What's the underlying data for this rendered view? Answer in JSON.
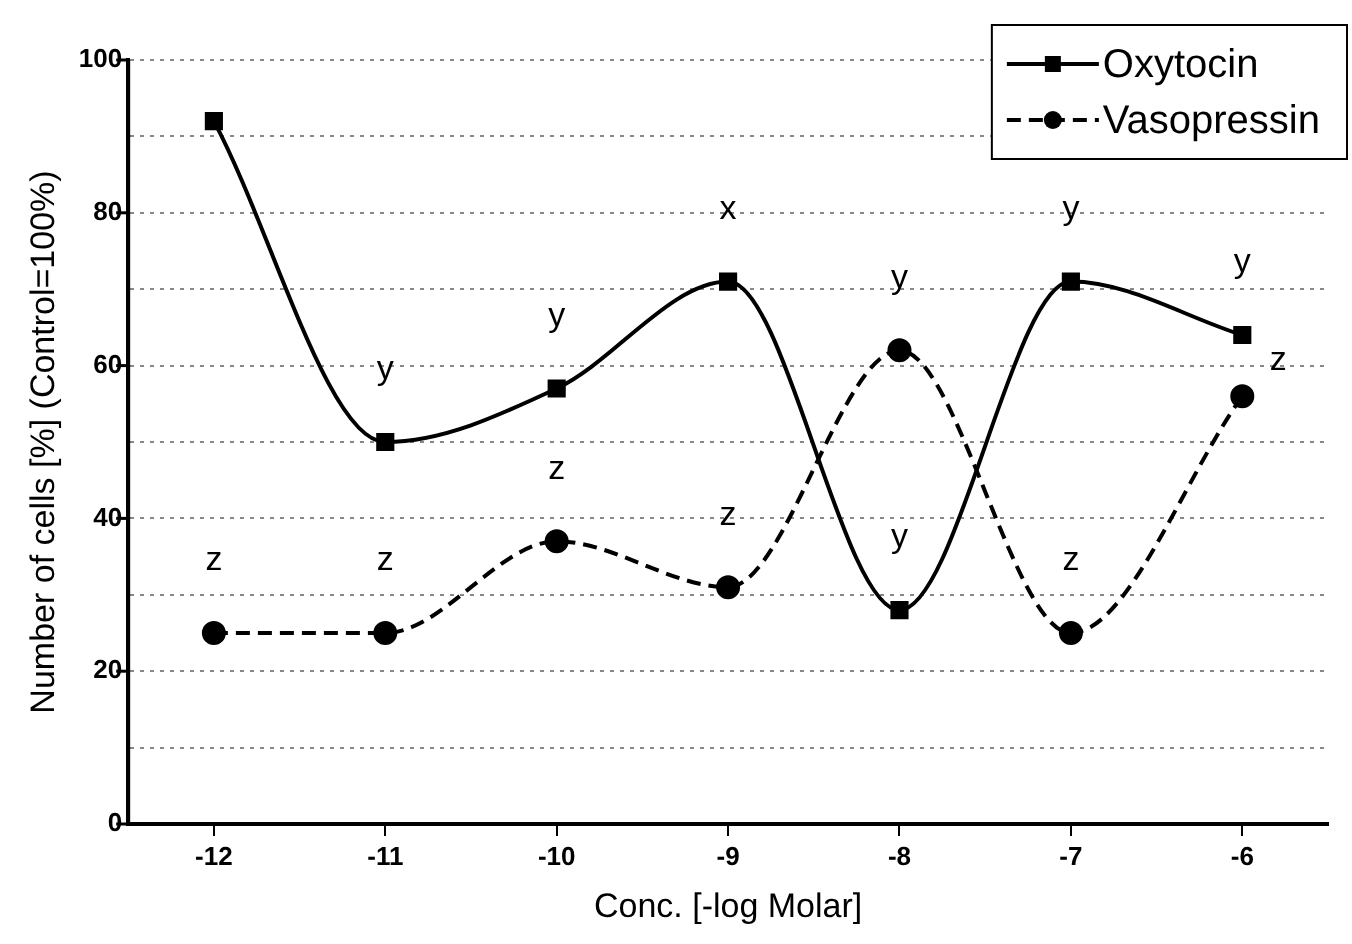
{
  "chart_data": {
    "type": "line",
    "xlabel": "Conc. [-log Molar]",
    "ylabel": "Number of cells [%] (Control=100%)",
    "x": [
      -12,
      -11,
      -10,
      -9,
      -8,
      -7,
      -6
    ],
    "series": [
      {
        "name": "Oxytocin",
        "color": "#000000",
        "marker": "square",
        "line_style": "solid",
        "values": [
          92,
          50,
          57,
          71,
          28,
          71,
          64
        ],
        "value_labels": [
          null,
          "y",
          "y",
          "x",
          "y",
          "y",
          "y"
        ]
      },
      {
        "name": "Vasopressin",
        "color": "#000000",
        "marker": "circle",
        "line_style": "dashed",
        "values": [
          25,
          25,
          37,
          31,
          62,
          25,
          56
        ],
        "value_labels": [
          "z",
          "z",
          "z",
          "z",
          "y",
          "z",
          "z"
        ]
      }
    ],
    "xlim": [
      -12.5,
      -5.5
    ],
    "xticks": [
      -12,
      -11,
      -10,
      -9,
      -8,
      -7,
      -6
    ],
    "ylim": [
      0,
      100
    ],
    "yticks": [
      0,
      {
        "value": 10,
        "label": null
      },
      20,
      {
        "value": 30,
        "label": null
      },
      40,
      {
        "value": 50,
        "label": null
      },
      60,
      {
        "value": 70,
        "label": null
      },
      80,
      {
        "value": 90,
        "label": null
      },
      100
    ],
    "grid": "y",
    "legend": "top right"
  }
}
